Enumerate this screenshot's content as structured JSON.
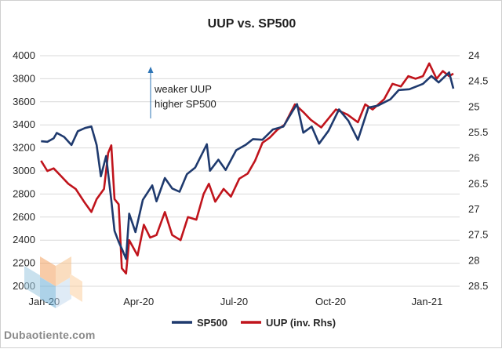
{
  "chart_data": {
    "type": "line",
    "title": "UUP vs. SP500",
    "x_ticks": [
      "Jan-20",
      "Apr-20",
      "Jul-20",
      "Oct-20",
      "Jan-21"
    ],
    "y_left": {
      "ylim": [
        2000,
        4000
      ],
      "ticks": [
        "2000",
        "2200",
        "2400",
        "2600",
        "2800",
        "3000",
        "3200",
        "3400",
        "3600",
        "3800",
        "4000"
      ]
    },
    "y_right": {
      "ylim": [
        24,
        28.5
      ],
      "inverted": true,
      "ticks": [
        "24",
        "24.5",
        "25",
        "25.5",
        "26",
        "26.5",
        "27",
        "27.5",
        "28",
        "28.5"
      ]
    },
    "grid": true,
    "legend_position": "bottom",
    "annotation": [
      "weaker UUP",
      "higher SP500"
    ],
    "series": [
      {
        "name": "SP500",
        "axis": "left",
        "color": "#1f3a6e",
        "points": [
          [
            "2020-01-02",
            3258
          ],
          [
            "2020-01-08",
            3253
          ],
          [
            "2020-01-14",
            3283
          ],
          [
            "2020-01-17",
            3330
          ],
          [
            "2020-01-24",
            3295
          ],
          [
            "2020-01-31",
            3225
          ],
          [
            "2020-02-06",
            3345
          ],
          [
            "2020-02-13",
            3373
          ],
          [
            "2020-02-19",
            3386
          ],
          [
            "2020-02-24",
            3225
          ],
          [
            "2020-02-28",
            2954
          ],
          [
            "2020-03-04",
            3130
          ],
          [
            "2020-03-09",
            2746
          ],
          [
            "2020-03-12",
            2480
          ],
          [
            "2020-03-16",
            2386
          ],
          [
            "2020-03-20",
            2304
          ],
          [
            "2020-03-23",
            2237
          ],
          [
            "2020-03-26",
            2630
          ],
          [
            "2020-04-01",
            2470
          ],
          [
            "2020-04-08",
            2750
          ],
          [
            "2020-04-17",
            2875
          ],
          [
            "2020-04-21",
            2737
          ],
          [
            "2020-04-29",
            2939
          ],
          [
            "2020-05-06",
            2848
          ],
          [
            "2020-05-13",
            2820
          ],
          [
            "2020-05-20",
            2972
          ],
          [
            "2020-05-28",
            3030
          ],
          [
            "2020-06-08",
            3232
          ],
          [
            "2020-06-11",
            3002
          ],
          [
            "2020-06-19",
            3098
          ],
          [
            "2020-06-26",
            3009
          ],
          [
            "2020-07-06",
            3180
          ],
          [
            "2020-07-15",
            3226
          ],
          [
            "2020-07-22",
            3276
          ],
          [
            "2020-07-31",
            3271
          ],
          [
            "2020-08-10",
            3360
          ],
          [
            "2020-08-20",
            3385
          ],
          [
            "2020-08-28",
            3508
          ],
          [
            "2020-09-02",
            3580
          ],
          [
            "2020-09-08",
            3332
          ],
          [
            "2020-09-16",
            3385
          ],
          [
            "2020-09-23",
            3237
          ],
          [
            "2020-10-02",
            3348
          ],
          [
            "2020-10-12",
            3534
          ],
          [
            "2020-10-21",
            3435
          ],
          [
            "2020-10-30",
            3270
          ],
          [
            "2020-11-09",
            3550
          ],
          [
            "2020-11-18",
            3567
          ],
          [
            "2020-11-30",
            3622
          ],
          [
            "2020-12-08",
            3702
          ],
          [
            "2020-12-18",
            3709
          ],
          [
            "2020-12-31",
            3756
          ],
          [
            "2021-01-08",
            3824
          ],
          [
            "2021-01-15",
            3768
          ],
          [
            "2021-01-25",
            3855
          ],
          [
            "2021-01-29",
            3714
          ]
        ]
      },
      {
        "name": "UUP (inv. Rhs)",
        "axis": "right",
        "color": "#c0141c",
        "points": [
          [
            "2020-01-02",
            26.05
          ],
          [
            "2020-01-08",
            26.25
          ],
          [
            "2020-01-14",
            26.2
          ],
          [
            "2020-01-21",
            26.35
          ],
          [
            "2020-01-28",
            26.5
          ],
          [
            "2020-02-04",
            26.6
          ],
          [
            "2020-02-12",
            26.85
          ],
          [
            "2020-02-19",
            27.05
          ],
          [
            "2020-02-24",
            26.8
          ],
          [
            "2020-03-02",
            26.6
          ],
          [
            "2020-03-06",
            25.9
          ],
          [
            "2020-03-09",
            25.75
          ],
          [
            "2020-03-12",
            26.8
          ],
          [
            "2020-03-16",
            26.9
          ],
          [
            "2020-03-19",
            28.15
          ],
          [
            "2020-03-23",
            28.25
          ],
          [
            "2020-03-26",
            27.6
          ],
          [
            "2020-04-03",
            27.9
          ],
          [
            "2020-04-09",
            27.3
          ],
          [
            "2020-04-15",
            27.55
          ],
          [
            "2020-04-21",
            27.5
          ],
          [
            "2020-04-29",
            27.05
          ],
          [
            "2020-05-06",
            27.5
          ],
          [
            "2020-05-14",
            27.6
          ],
          [
            "2020-05-21",
            27.15
          ],
          [
            "2020-05-29",
            27.2
          ],
          [
            "2020-06-05",
            26.7
          ],
          [
            "2020-06-10",
            26.5
          ],
          [
            "2020-06-16",
            26.85
          ],
          [
            "2020-06-24",
            26.6
          ],
          [
            "2020-07-01",
            26.75
          ],
          [
            "2020-07-09",
            26.4
          ],
          [
            "2020-07-17",
            26.3
          ],
          [
            "2020-07-24",
            26.05
          ],
          [
            "2020-07-31",
            25.7
          ],
          [
            "2020-08-07",
            25.6
          ],
          [
            "2020-08-14",
            25.45
          ],
          [
            "2020-08-21",
            25.35
          ],
          [
            "2020-08-31",
            24.95
          ],
          [
            "2020-09-08",
            25.1
          ],
          [
            "2020-09-15",
            25.25
          ],
          [
            "2020-09-25",
            25.4
          ],
          [
            "2020-10-01",
            25.25
          ],
          [
            "2020-10-09",
            25.05
          ],
          [
            "2020-10-20",
            25.15
          ],
          [
            "2020-10-30",
            25.3
          ],
          [
            "2020-11-06",
            24.95
          ],
          [
            "2020-11-13",
            25.05
          ],
          [
            "2020-11-24",
            24.85
          ],
          [
            "2020-12-02",
            24.55
          ],
          [
            "2020-12-10",
            24.6
          ],
          [
            "2020-12-17",
            24.4
          ],
          [
            "2020-12-24",
            24.45
          ],
          [
            "2020-12-31",
            24.4
          ],
          [
            "2021-01-06",
            24.15
          ],
          [
            "2021-01-13",
            24.45
          ],
          [
            "2021-01-19",
            24.3
          ],
          [
            "2021-01-25",
            24.4
          ],
          [
            "2021-01-29",
            24.35
          ]
        ]
      }
    ]
  },
  "watermark": "Dubaotiente.com"
}
